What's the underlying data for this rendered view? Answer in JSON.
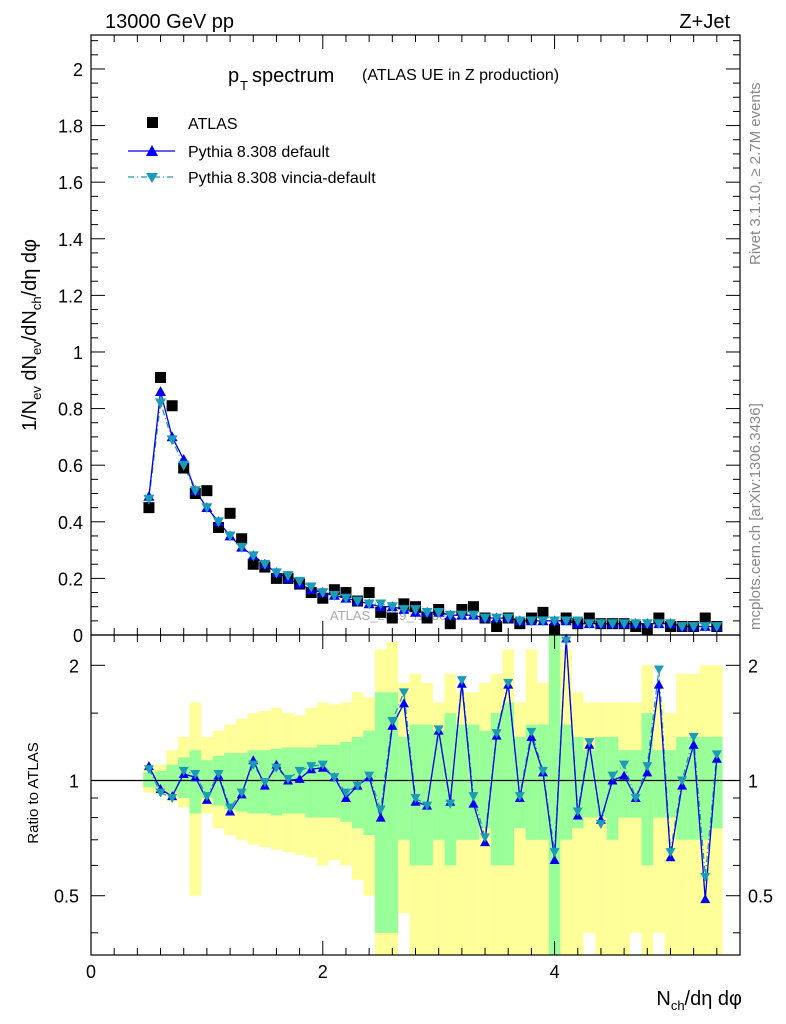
{
  "header": {
    "left": "13000 GeV pp",
    "right": "Z+Jet"
  },
  "side_labels": {
    "rivet": "Rivet 3.1.10, ≥ 2.7M events",
    "mcplots": "mcplots.cern.ch [arXiv:1306.3436]"
  },
  "watermark": "ATLAS_2019_I1736531",
  "colors": {
    "atlas": "#000000",
    "pythia_default": "#0000ee",
    "pythia_vincia": "#1a9bb8",
    "band_yellow": "#ffff99",
    "band_green": "#99ff99"
  },
  "chart_data": [
    {
      "type": "scatter",
      "title": "p_T spectrum",
      "title_main": "p",
      "title_sub": "T",
      "title_rest": " spectrum",
      "title_note": "(ATLAS UE in Z production)",
      "xlabel": "N_ch/dη dφ",
      "ylabel": "1/N_ev dN_ev/dN_ch/dη dφ",
      "xlim": [
        0,
        5.6
      ],
      "ylim": [
        0,
        2.12
      ],
      "legend_position": "top-left",
      "legend": [
        "ATLAS",
        "Pythia 8.308 default",
        "Pythia 8.308 vincia-default"
      ],
      "yticks": [
        "0",
        "0.2",
        "0.4",
        "0.6",
        "0.8",
        "1",
        "1.2",
        "1.4",
        "1.6",
        "1.8",
        "2"
      ],
      "x": [
        0.5,
        0.6,
        0.7,
        0.8,
        0.9,
        1.0,
        1.1,
        1.2,
        1.3,
        1.4,
        1.5,
        1.6,
        1.7,
        1.8,
        1.9,
        2.0,
        2.1,
        2.2,
        2.3,
        2.4,
        2.5,
        2.6,
        2.7,
        2.8,
        2.9,
        3.0,
        3.1,
        3.2,
        3.3,
        3.4,
        3.5,
        3.6,
        3.7,
        3.8,
        3.9,
        4.0,
        4.1,
        4.2,
        4.3,
        4.4,
        4.5,
        4.6,
        4.7,
        4.8,
        4.9,
        5.0,
        5.1,
        5.2,
        5.3,
        5.4
      ],
      "series": [
        {
          "name": "ATLAS",
          "values": [
            0.45,
            0.91,
            0.81,
            0.59,
            0.5,
            0.51,
            0.38,
            0.43,
            0.34,
            0.25,
            0.24,
            0.2,
            0.2,
            0.18,
            0.15,
            0.13,
            0.16,
            0.15,
            0.12,
            0.15,
            0.08,
            0.06,
            0.11,
            0.1,
            0.06,
            0.09,
            0.04,
            0.09,
            0.1,
            0.06,
            0.03,
            0.06,
            0.04,
            0.06,
            0.08,
            0.02,
            0.06,
            0.04,
            0.06,
            0.04,
            0.04,
            0.04,
            0.03,
            0.02,
            0.06,
            0.03,
            0.03,
            0.03,
            0.06,
            0.03
          ]
        },
        {
          "name": "Pythia 8.308 default",
          "values": [
            0.49,
            0.86,
            0.7,
            0.62,
            0.51,
            0.45,
            0.4,
            0.35,
            0.31,
            0.28,
            0.25,
            0.22,
            0.2,
            0.18,
            0.16,
            0.15,
            0.14,
            0.13,
            0.12,
            0.11,
            0.1,
            0.1,
            0.09,
            0.08,
            0.08,
            0.08,
            0.07,
            0.07,
            0.07,
            0.06,
            0.06,
            0.06,
            0.05,
            0.05,
            0.05,
            0.05,
            0.05,
            0.04,
            0.04,
            0.04,
            0.04,
            0.04,
            0.04,
            0.04,
            0.04,
            0.04,
            0.03,
            0.03,
            0.03,
            0.03
          ]
        },
        {
          "name": "Pythia 8.308 vincia-default",
          "values": [
            0.48,
            0.82,
            0.69,
            0.6,
            0.51,
            0.45,
            0.4,
            0.35,
            0.31,
            0.28,
            0.25,
            0.22,
            0.21,
            0.19,
            0.17,
            0.15,
            0.14,
            0.13,
            0.12,
            0.11,
            0.11,
            0.1,
            0.09,
            0.09,
            0.08,
            0.08,
            0.07,
            0.07,
            0.07,
            0.06,
            0.06,
            0.06,
            0.05,
            0.05,
            0.05,
            0.05,
            0.05,
            0.05,
            0.04,
            0.04,
            0.04,
            0.04,
            0.04,
            0.04,
            0.04,
            0.04,
            0.03,
            0.03,
            0.03,
            0.03
          ]
        }
      ]
    },
    {
      "type": "line",
      "title": "",
      "xlabel": "N_ch/dη dφ",
      "ylabel": "Ratio to ATLAS",
      "xlim": [
        0,
        5.6
      ],
      "ylim": [
        0.35,
        2.4
      ],
      "y_scale": "log",
      "reference_line": 1,
      "xticks": [
        "0",
        "2",
        "4"
      ],
      "yticks": [
        "0.5",
        "1",
        "2"
      ],
      "x": [
        0.5,
        0.6,
        0.7,
        0.8,
        0.9,
        1.0,
        1.1,
        1.2,
        1.3,
        1.4,
        1.5,
        1.6,
        1.7,
        1.8,
        1.9,
        2.0,
        2.1,
        2.2,
        2.3,
        2.4,
        2.5,
        2.6,
        2.7,
        2.8,
        2.9,
        3.0,
        3.1,
        3.2,
        3.3,
        3.4,
        3.5,
        3.6,
        3.7,
        3.8,
        3.9,
        4.0,
        4.1,
        4.2,
        4.3,
        4.4,
        4.5,
        4.6,
        4.7,
        4.8,
        4.9,
        5.0,
        5.1,
        5.2,
        5.3,
        5.4
      ],
      "bands": {
        "yellow_low": [
          0.93,
          0.92,
          0.88,
          0.85,
          0.5,
          0.82,
          0.75,
          0.72,
          0.7,
          0.68,
          0.67,
          0.66,
          0.65,
          0.64,
          0.63,
          0.6,
          0.62,
          0.6,
          0.55,
          0.5,
          0.3,
          0.3,
          0.45,
          0.3,
          0.3,
          0.35,
          0.3,
          0.35,
          0.3,
          0.3,
          0.3,
          0.3,
          0.3,
          0.35,
          0.3,
          0.3,
          0.3,
          0.3,
          0.4,
          0.3,
          0.3,
          0.35,
          0.4,
          0.3,
          0.4,
          0.35,
          0.35,
          0.3,
          0.3,
          0.3
        ],
        "yellow_high": [
          1.08,
          1.1,
          1.2,
          1.3,
          1.6,
          1.3,
          1.35,
          1.4,
          1.45,
          1.5,
          1.52,
          1.55,
          1.5,
          1.48,
          1.55,
          1.6,
          1.58,
          1.6,
          1.7,
          1.65,
          2.2,
          2.3,
          1.8,
          1.9,
          1.8,
          1.6,
          1.9,
          1.7,
          1.7,
          1.8,
          1.9,
          2.2,
          1.6,
          2.2,
          1.8,
          2.4,
          2.2,
          1.7,
          1.6,
          1.6,
          1.6,
          1.6,
          1.6,
          2.0,
          1.6,
          1.5,
          1.9,
          1.9,
          2.0,
          2.0
        ],
        "green_low": [
          0.96,
          0.95,
          0.93,
          0.9,
          0.82,
          0.9,
          0.86,
          0.84,
          0.83,
          0.82,
          0.82,
          0.81,
          0.82,
          0.82,
          0.8,
          0.8,
          0.8,
          0.78,
          0.75,
          0.72,
          0.4,
          0.4,
          0.7,
          0.6,
          0.6,
          0.7,
          0.6,
          0.7,
          0.7,
          0.75,
          0.6,
          0.6,
          0.75,
          0.7,
          0.7,
          0.3,
          0.7,
          0.75,
          0.8,
          0.8,
          0.7,
          0.8,
          0.8,
          0.6,
          0.8,
          0.8,
          0.7,
          0.7,
          0.7,
          0.75
        ],
        "green_high": [
          1.05,
          1.06,
          1.1,
          1.15,
          1.2,
          1.13,
          1.16,
          1.18,
          1.18,
          1.2,
          1.2,
          1.21,
          1.22,
          1.22,
          1.22,
          1.24,
          1.24,
          1.26,
          1.3,
          1.35,
          1.7,
          1.7,
          1.3,
          1.4,
          1.4,
          1.35,
          1.5,
          1.4,
          1.4,
          1.35,
          1.5,
          1.6,
          1.3,
          1.4,
          1.4,
          2.4,
          1.4,
          1.3,
          1.2,
          1.3,
          1.3,
          1.2,
          1.2,
          1.5,
          1.2,
          1.2,
          1.3,
          1.3,
          1.3,
          1.3
        ]
      },
      "series": [
        {
          "name": "Pythia 8.308 default",
          "values": [
            1.09,
            0.95,
            0.91,
            1.04,
            1.02,
            0.89,
            1.03,
            0.83,
            0.92,
            1.13,
            0.97,
            1.1,
            1.0,
            1.01,
            1.07,
            1.08,
            1.02,
            0.9,
            0.97,
            1.02,
            0.8,
            1.39,
            1.59,
            0.88,
            0.86,
            1.35,
            0.88,
            1.79,
            0.87,
            0.69,
            1.31,
            1.78,
            0.9,
            1.3,
            1.05,
            0.62,
            2.35,
            0.81,
            1.24,
            0.79,
            1.0,
            1.03,
            0.9,
            1.05,
            1.78,
            0.63,
            0.97,
            1.24,
            0.49,
            1.14
          ]
        },
        {
          "name": "Pythia 8.308 vincia-default",
          "values": [
            1.07,
            0.93,
            0.9,
            1.06,
            1.04,
            0.91,
            1.04,
            0.85,
            0.93,
            1.1,
            0.99,
            1.08,
            1.01,
            1.06,
            1.09,
            1.1,
            1.02,
            0.93,
            0.97,
            1.03,
            0.84,
            1.43,
            1.7,
            0.9,
            0.86,
            1.36,
            0.87,
            1.83,
            0.91,
            0.71,
            1.33,
            1.8,
            0.91,
            1.34,
            1.06,
            0.65,
            2.32,
            0.83,
            1.26,
            0.77,
            1.03,
            1.1,
            0.9,
            1.09,
            1.95,
            0.65,
            1.0,
            1.3,
            0.56,
            1.17
          ]
        }
      ]
    }
  ]
}
